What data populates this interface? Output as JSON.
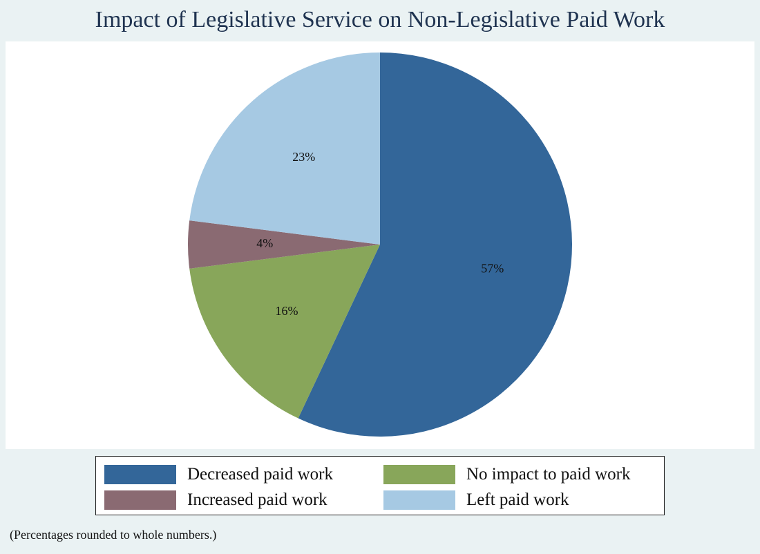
{
  "chart_data": {
    "type": "pie",
    "title": "Impact of Legislative Service on Non-Legislative Paid Work",
    "slices": [
      {
        "label": "Decreased paid work",
        "value": 57,
        "display": "57%",
        "color": "#336699"
      },
      {
        "label": "No impact to paid work",
        "value": 16,
        "display": "16%",
        "color": "#88a65a"
      },
      {
        "label": "Increased paid work",
        "value": 4,
        "display": "4%",
        "color": "#8a6a72"
      },
      {
        "label": "Left paid work",
        "value": 23,
        "display": "23%",
        "color": "#a6c9e3"
      }
    ],
    "start": "12 o'clock",
    "direction": "clockwise",
    "legend_position": "bottom",
    "legend_columns": 2,
    "legend": [
      {
        "label": "Decreased paid work",
        "color": "#336699"
      },
      {
        "label": "No impact to paid work",
        "color": "#88a65a"
      },
      {
        "label": "Increased paid work",
        "color": "#8a6a72"
      },
      {
        "label": "Left paid work",
        "color": "#a6c9e3"
      }
    ],
    "footnote": "(Percentages rounded to whole numbers.)"
  }
}
